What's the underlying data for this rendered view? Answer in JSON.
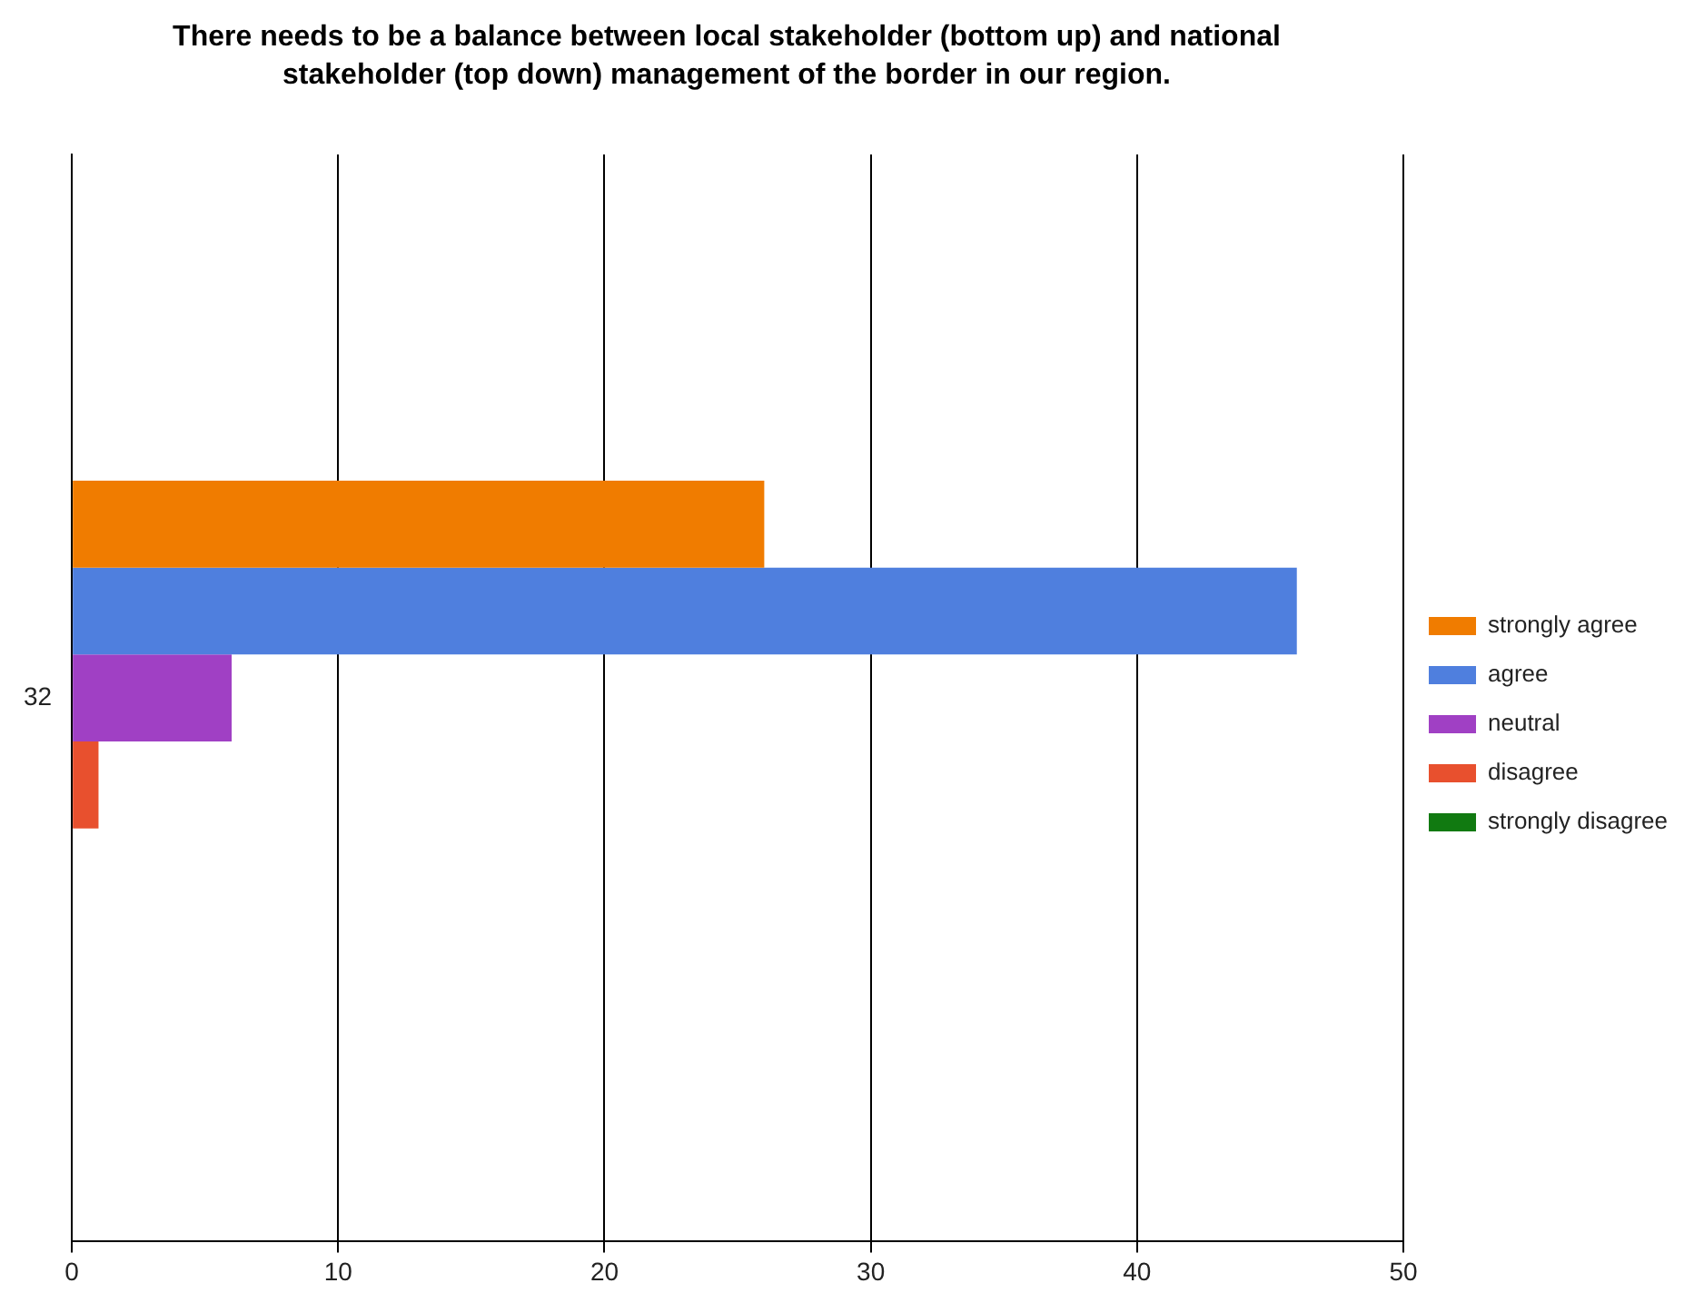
{
  "chart_data": {
    "type": "bar",
    "orientation": "horizontal",
    "title": "There needs to be a balance between local stakeholder (bottom up) and national stakeholder (top down) management of the border in our region.",
    "categories": [
      "32"
    ],
    "series": [
      {
        "name": "strongly agree",
        "color": "#f07c00",
        "values": [
          26
        ]
      },
      {
        "name": "agree",
        "color": "#4f7fde",
        "values": [
          46
        ]
      },
      {
        "name": "neutral",
        "color": "#a040c4",
        "values": [
          6
        ]
      },
      {
        "name": "disagree",
        "color": "#e8502e",
        "values": [
          1
        ]
      },
      {
        "name": "strongly disagree",
        "color": "#117a11",
        "values": [
          0
        ]
      }
    ],
    "xlim": [
      0,
      50
    ],
    "xticks": [
      0,
      10,
      20,
      30,
      40,
      50
    ],
    "grid": "x",
    "legend": "right"
  }
}
